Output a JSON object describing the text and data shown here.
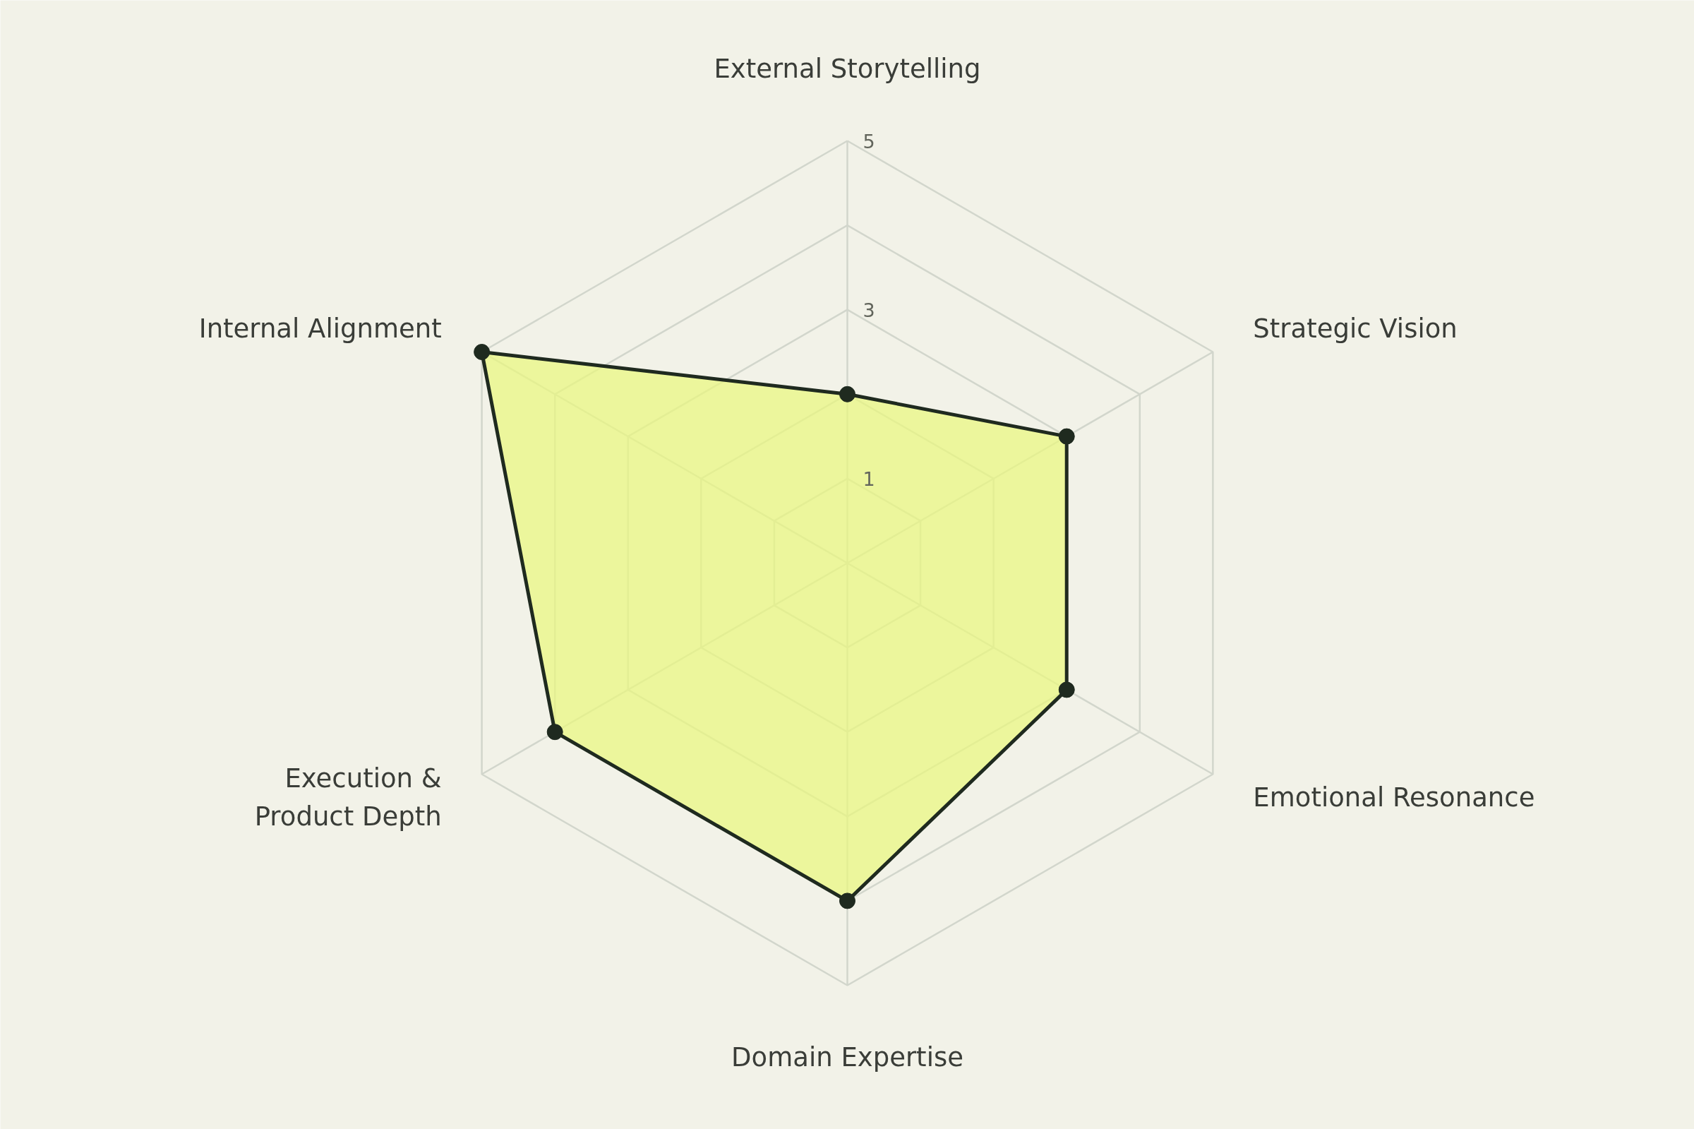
{
  "chart_data": {
    "type": "radar",
    "categories": [
      "External Storytelling",
      "Strategic Vision",
      "Emotional Resonance",
      "Domain Expertise",
      "Execution &\nProduct Depth",
      "Internal Alignment"
    ],
    "series": [
      {
        "color": "#1f2a1f",
        "values": [
          2,
          3,
          3,
          4,
          4,
          5
        ]
      }
    ],
    "ylim": [
      0,
      5
    ],
    "yticks": [
      1,
      3,
      5
    ],
    "marker": "circle",
    "line_style": "solid",
    "grid": true
  }
}
